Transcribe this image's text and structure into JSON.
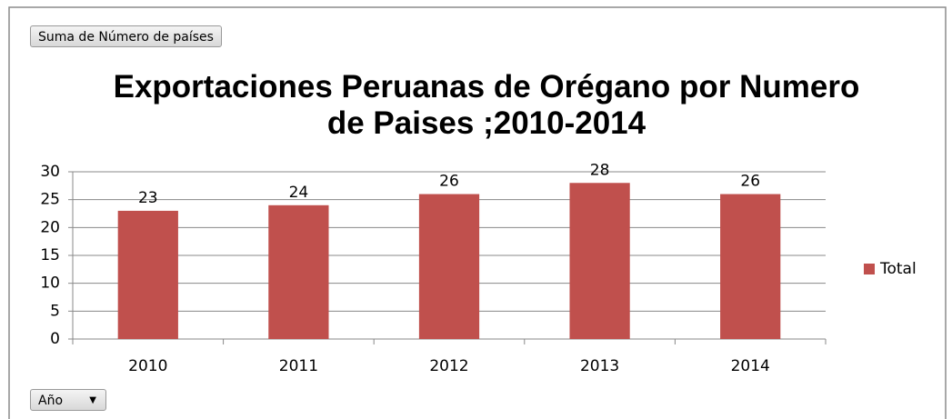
{
  "chart_data": {
    "type": "bar",
    "title": "Exportaciones Peruanas de Orégano por Numero de Paises ;2010-2014",
    "value_field": "Suma de Número de países",
    "axis_field": "Año",
    "categories": [
      "2010",
      "2011",
      "2012",
      "2013",
      "2014"
    ],
    "series": [
      {
        "name": "Total",
        "color": "#c0504d",
        "values": [
          23,
          24,
          26,
          28,
          26
        ]
      }
    ],
    "ylim": [
      0,
      30
    ],
    "yticks": [
      0,
      5,
      10,
      15,
      20,
      25,
      30
    ],
    "grid": true,
    "legend": "right"
  }
}
